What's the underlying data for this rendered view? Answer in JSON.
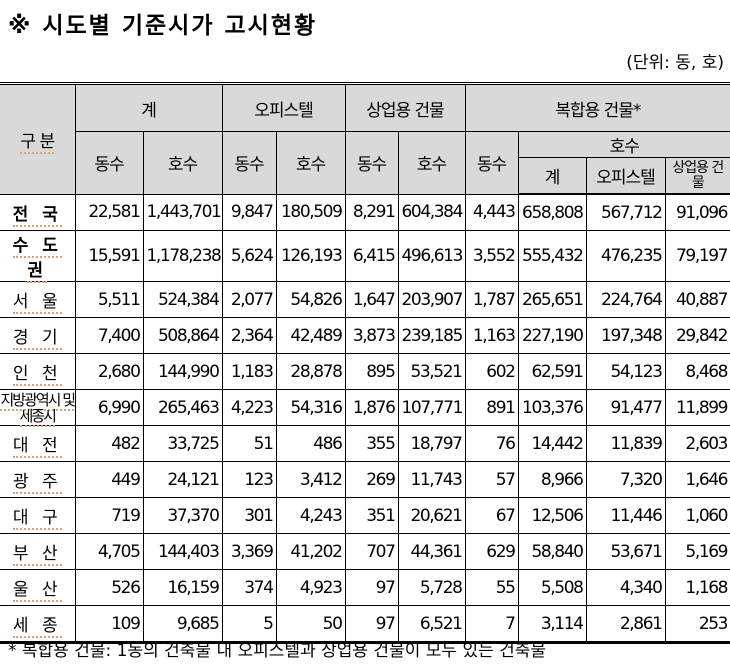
{
  "title": "※ 시도별 기준시가 고시현황",
  "unit": "(단위: 동, 호)",
  "headers": {
    "category": "구 분",
    "total": "계",
    "officetel": "오피스텔",
    "commercial": "상업용 건물",
    "mixed": "복합용 건물*",
    "dong": "동수",
    "ho": "호수",
    "mixed_ho_total": "계",
    "mixed_ho_officetel": "오피스텔",
    "mixed_ho_commercial": "상업용 건물"
  },
  "rows": [
    {
      "name": "전 국",
      "values": [
        "22,581",
        "1,443,701",
        "9,847",
        "180,509",
        "8,291",
        "604,384",
        "4,443",
        "658,808",
        "567,712",
        "91,096"
      ]
    },
    {
      "name": "수 도 권",
      "values": [
        "15,591",
        "1,178,238",
        "5,624",
        "126,193",
        "6,415",
        "496,613",
        "3,552",
        "555,432",
        "476,235",
        "79,197"
      ]
    },
    {
      "name": "서 울",
      "values": [
        "5,511",
        "524,384",
        "2,077",
        "54,826",
        "1,647",
        "203,907",
        "1,787",
        "265,651",
        "224,764",
        "40,887"
      ]
    },
    {
      "name": "경 기",
      "values": [
        "7,400",
        "508,864",
        "2,364",
        "42,489",
        "3,873",
        "239,185",
        "1,163",
        "227,190",
        "197,348",
        "29,842"
      ]
    },
    {
      "name": "인 천",
      "values": [
        "2,680",
        "144,990",
        "1,183",
        "28,878",
        "895",
        "53,521",
        "602",
        "62,591",
        "54,123",
        "8,468"
      ]
    },
    {
      "name": "지방광역시 및 세종시",
      "values": [
        "6,990",
        "265,463",
        "4,223",
        "54,316",
        "1,876",
        "107,771",
        "891",
        "103,376",
        "91,477",
        "11,899"
      ]
    },
    {
      "name": "대 전",
      "values": [
        "482",
        "33,725",
        "51",
        "486",
        "355",
        "18,797",
        "76",
        "14,442",
        "11,839",
        "2,603"
      ]
    },
    {
      "name": "광 주",
      "values": [
        "449",
        "24,121",
        "123",
        "3,412",
        "269",
        "11,743",
        "57",
        "8,966",
        "7,320",
        "1,646"
      ]
    },
    {
      "name": "대 구",
      "values": [
        "719",
        "37,370",
        "301",
        "4,243",
        "351",
        "20,621",
        "67",
        "12,506",
        "11,446",
        "1,060"
      ]
    },
    {
      "name": "부 산",
      "values": [
        "4,705",
        "144,403",
        "3,369",
        "41,202",
        "707",
        "44,361",
        "629",
        "58,840",
        "53,671",
        "5,169"
      ]
    },
    {
      "name": "울 산",
      "values": [
        "526",
        "16,159",
        "374",
        "4,923",
        "97",
        "5,728",
        "55",
        "5,508",
        "4,340",
        "1,168"
      ]
    },
    {
      "name": "세 종",
      "values": [
        "109",
        "9,685",
        "5",
        "50",
        "97",
        "6,521",
        "7",
        "3,114",
        "2,861",
        "253"
      ]
    }
  ],
  "footnote": "* 복합용 건물: 1동의 건축물 내 오피스텔과 상업용 건물이 모두 있는 건축물"
}
